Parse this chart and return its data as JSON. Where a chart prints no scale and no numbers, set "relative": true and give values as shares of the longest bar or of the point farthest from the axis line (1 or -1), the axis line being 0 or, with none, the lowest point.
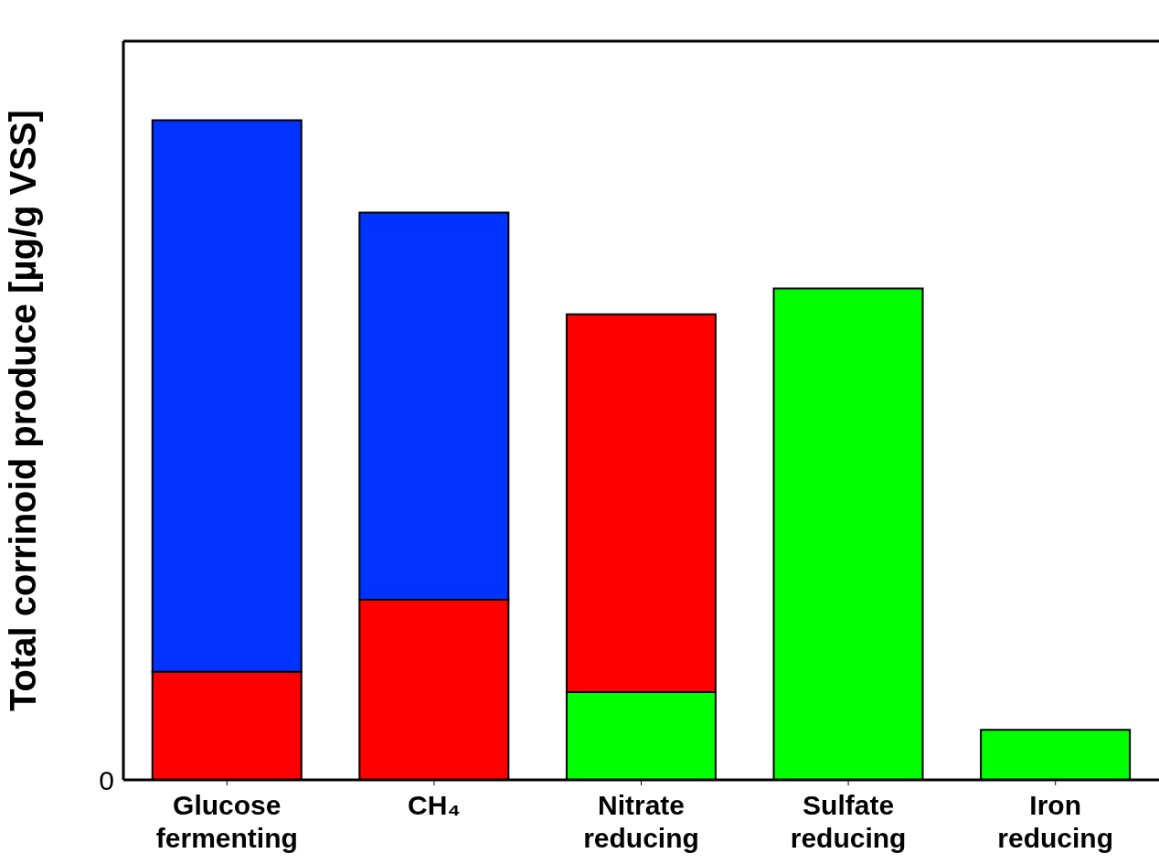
{
  "chart_data": {
    "type": "bar",
    "stacked": true,
    "relative": true,
    "ylabel": "Total corrinoid produce    [µg/g VSS]",
    "categories": [
      "Glucose fermenting",
      "CH₄",
      "Nitrate reducing",
      "Sulfate reducing",
      "Iron reducing"
    ],
    "annotations": [
      "0"
    ],
    "series": [
      {
        "color": "#00ff00",
        "values": [
          0,
          0,
          0.133,
          0.745,
          0.076
        ]
      },
      {
        "color": "#ff0000",
        "values": [
          0.164,
          0.273,
          0.573,
          0,
          0
        ]
      },
      {
        "color": "#0033ff",
        "values": [
          0.836,
          0.587,
          0,
          0,
          0
        ]
      }
    ],
    "grid": false,
    "legend": false
  }
}
